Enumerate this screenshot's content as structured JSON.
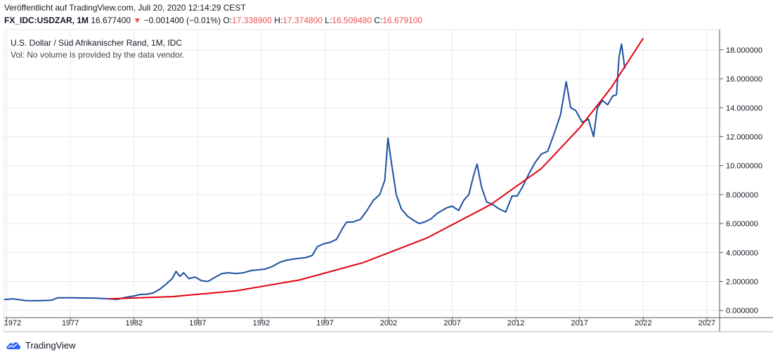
{
  "header": {
    "published": "Veröffentlicht auf TradingView.com, Juli 20, 2020 12:14:29 CEST",
    "symbol": "FX_IDC:USDZAR, 1M",
    "last": "16.677400",
    "change_arrow": "▼",
    "change": "−0.001400 (−0.01%)",
    "o_label": "O:",
    "o_value": "17.338900",
    "h_label": "H:",
    "h_value": "17.374800",
    "l_label": "L:",
    "l_value": "16.509480",
    "c_label": "C:",
    "c_value": "16.679100"
  },
  "legend": {
    "title": "U.S. Dollar / Süd Afrikanischer Rand, 1M, IDC",
    "volume_note": "Vol: No volume is provided by the data vendor."
  },
  "brand": {
    "name": "TradingView"
  },
  "colors": {
    "price_line": "#1c4fa0",
    "trend_line": "#e3000f",
    "grid": "#e6e9ee",
    "change_down": "#ef5350"
  },
  "chart_data": {
    "type": "line",
    "x_ticks": [
      "1972",
      "1977",
      "1982",
      "1987",
      "1992",
      "1997",
      "2002",
      "2007",
      "2012",
      "2017",
      "2022",
      "2027"
    ],
    "y_ticks": [
      "0.000000",
      "2.000000",
      "4.000000",
      "6.000000",
      "8.000000",
      "10.000000",
      "12.000000",
      "14.000000",
      "16.000000",
      "18.000000"
    ],
    "xlim": [
      1971.8,
      2028.0
    ],
    "ylim": [
      -0.5,
      19.4
    ],
    "grid": true,
    "series": [
      {
        "kind": "price",
        "x": [
          1971.8,
          1972.5,
          1973.5,
          1974.5,
          1975.5,
          1976.0,
          1977.0,
          1978.0,
          1979.0,
          1980.0,
          1980.7,
          1981.3,
          1982.0,
          1982.5,
          1983.0,
          1983.5,
          1984.0,
          1984.5,
          1985.0,
          1985.3,
          1985.6,
          1985.9,
          1986.3,
          1986.8,
          1987.3,
          1987.8,
          1988.3,
          1988.9,
          1989.4,
          1990.0,
          1990.6,
          1991.2,
          1991.7,
          1992.3,
          1992.9,
          1993.4,
          1993.9,
          1994.5,
          1995.0,
          1995.5,
          1996.0,
          1996.4,
          1996.9,
          1997.4,
          1997.9,
          1998.4,
          1998.7,
          1999.2,
          1999.8,
          2000.3,
          2000.8,
          2001.3,
          2001.7,
          2001.95,
          2002.2,
          2002.6,
          2003.0,
          2003.5,
          2004.0,
          2004.4,
          2004.8,
          2005.3,
          2005.8,
          2006.2,
          2006.6,
          2007.0,
          2007.5,
          2007.9,
          2008.3,
          2008.7,
          2008.95,
          2009.3,
          2009.7,
          2010.2,
          2010.7,
          2011.2,
          2011.7,
          2012.1,
          2012.5,
          2013.0,
          2013.5,
          2014.0,
          2014.5,
          2015.0,
          2015.5,
          2015.95,
          2016.3,
          2016.7,
          2017.2,
          2017.7,
          2018.1,
          2018.4,
          2018.8,
          2019.2,
          2019.6,
          2019.9,
          2020.1,
          2020.3,
          2020.55
        ],
        "y": [
          0.75,
          0.8,
          0.68,
          0.67,
          0.7,
          0.87,
          0.87,
          0.86,
          0.85,
          0.8,
          0.76,
          0.9,
          1.0,
          1.1,
          1.12,
          1.2,
          1.45,
          1.8,
          2.2,
          2.7,
          2.35,
          2.6,
          2.2,
          2.3,
          2.05,
          2.0,
          2.25,
          2.55,
          2.6,
          2.55,
          2.6,
          2.75,
          2.8,
          2.85,
          3.05,
          3.3,
          3.45,
          3.55,
          3.6,
          3.65,
          3.8,
          4.4,
          4.6,
          4.7,
          4.9,
          5.7,
          6.1,
          6.1,
          6.3,
          6.9,
          7.6,
          8.0,
          9.0,
          11.9,
          10.3,
          8.0,
          7.0,
          6.5,
          6.2,
          6.0,
          6.1,
          6.3,
          6.7,
          6.9,
          7.1,
          7.2,
          6.9,
          7.6,
          8.0,
          9.4,
          10.1,
          8.5,
          7.5,
          7.3,
          7.0,
          6.8,
          7.9,
          7.9,
          8.5,
          9.4,
          10.2,
          10.8,
          11.0,
          12.2,
          13.5,
          15.8,
          14.0,
          13.8,
          13.0,
          13.2,
          12.0,
          14.0,
          14.5,
          14.2,
          14.8,
          14.9,
          17.5,
          18.4,
          16.7
        ]
      },
      {
        "kind": "trend",
        "x": [
          1980.0,
          1985.0,
          1990.0,
          1995.0,
          2000.0,
          2005.0,
          2010.0,
          2014.0,
          2017.0,
          2019.5,
          2022.0
        ],
        "y": [
          0.8,
          0.95,
          1.35,
          2.1,
          3.3,
          5.0,
          7.3,
          9.8,
          12.6,
          15.4,
          18.8
        ]
      }
    ]
  }
}
